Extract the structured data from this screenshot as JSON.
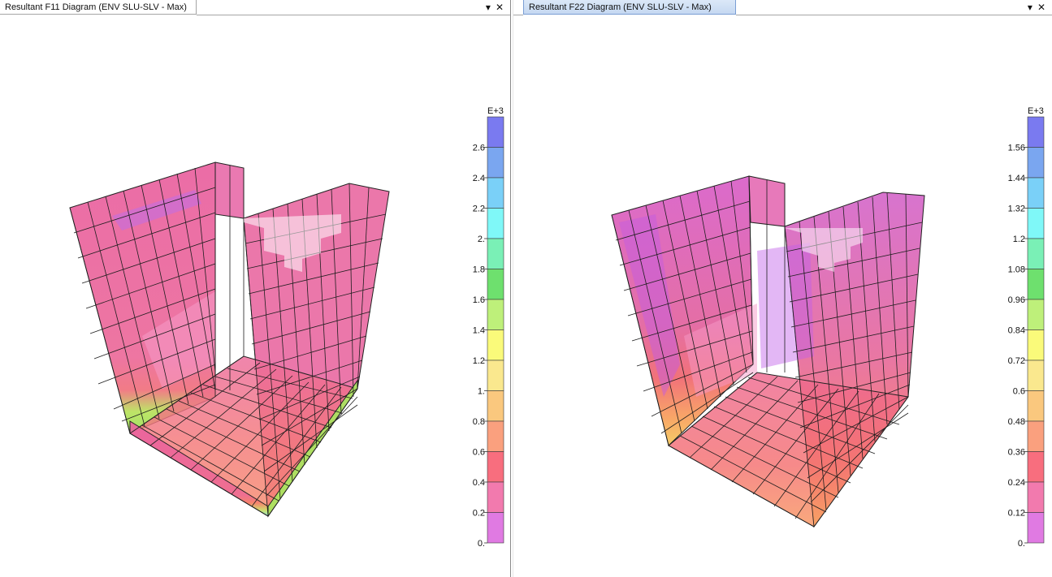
{
  "left_pane": {
    "title": "Resultant F11 Diagram (ENV SLU-SLV - Max)",
    "dropdown_icon": "chevron-down-icon",
    "close_icon": "close-icon",
    "legend": {
      "exponent": "E+3",
      "labels": [
        "2.6",
        "2.4",
        "2.2",
        "2.",
        "1.8",
        "1.6",
        "1.4",
        "1.2",
        "1.",
        "0.8",
        "0.6",
        "0.4",
        "0.2",
        "0."
      ]
    }
  },
  "right_pane": {
    "title": "Resultant F22 Diagram (ENV SLU-SLV - Max)",
    "dropdown_icon": "chevron-down-icon",
    "close_icon": "close-icon",
    "legend": {
      "exponent": "E+3",
      "labels": [
        "1.56",
        "1.44",
        "1.32",
        "1.2",
        "1.08",
        "0.96",
        "0.84",
        "0.72",
        "0.6",
        "0.48",
        "0.36",
        "0.24",
        "0.12",
        "0."
      ]
    }
  },
  "colors": {
    "legend_bands_top_to_bottom": [
      "#7a7af0",
      "#7aa6f0",
      "#7ad0f8",
      "#7ff8f8",
      "#7af0b6",
      "#6ee06e",
      "#bef07a",
      "#fafa7a",
      "#fae88e",
      "#fac87e",
      "#faa07e",
      "#f86e7e",
      "#f27aae",
      "#e07ae2"
    ]
  }
}
